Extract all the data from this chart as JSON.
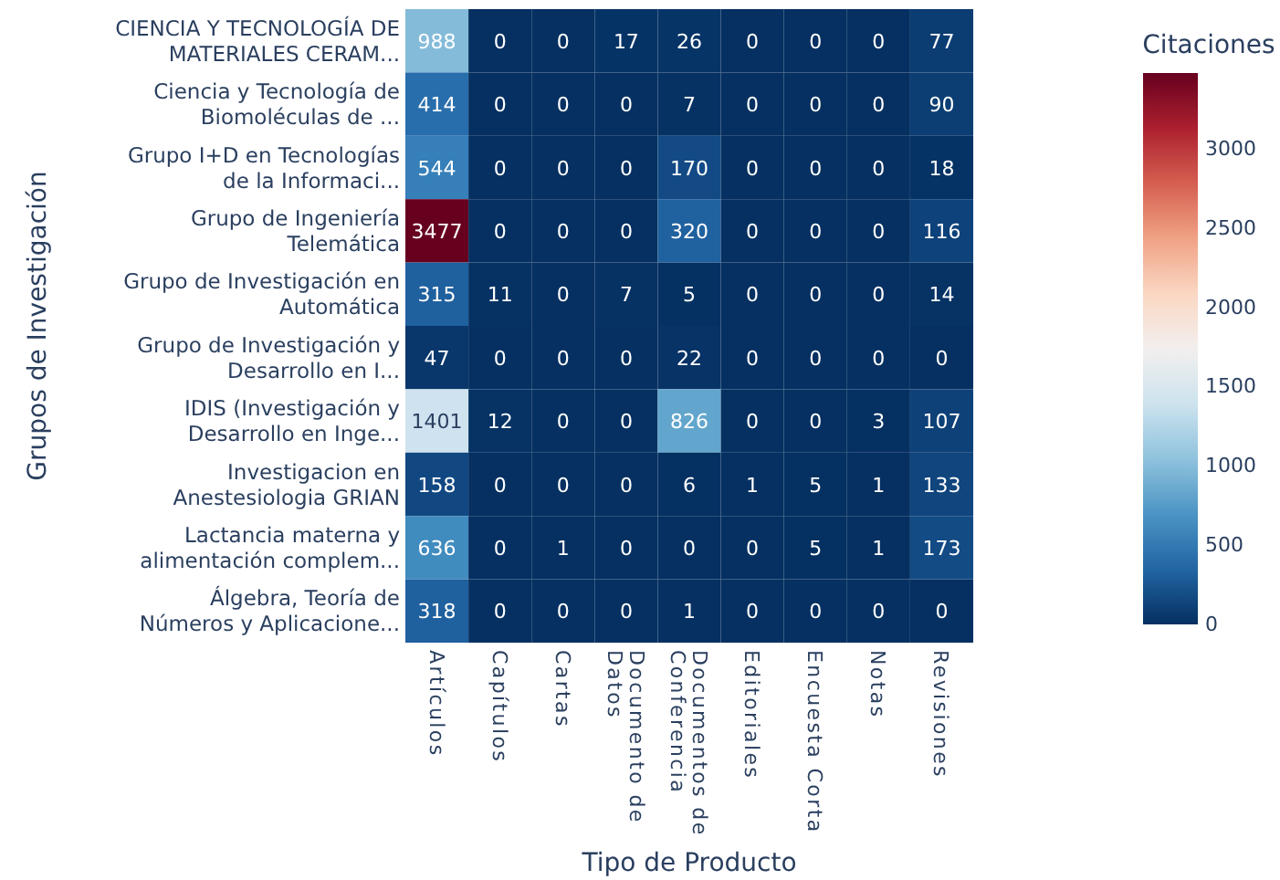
{
  "chart_data": {
    "type": "heatmap",
    "xlabel": "Tipo de Producto",
    "ylabel": "Grupos de Investigación",
    "clabel": "Citaciones",
    "categories": [
      "Artículos",
      "Capítulos",
      "Cartas",
      "Documento de\nDatos",
      "Documentos de\nConferencia",
      "Editoriales",
      "Encuesta Corta",
      "Notas",
      "Revisiones"
    ],
    "y_categories": [
      "CIENCIA Y TECNOLOGÍA DE\nMATERIALES CERAM...",
      "Ciencia y Tecnología de\nBiomoléculas de ...",
      "Grupo I+D en Tecnologías\nde la Informaci...",
      "Grupo de Ingeniería\nTelemática",
      "Grupo de Investigación en\nAutomática",
      "Grupo de Investigación y\nDesarrollo en I...",
      "IDIS (Investigación y\nDesarrollo en Inge...",
      "Investigacion en\nAnestesiologia GRIAN",
      "Lactancia materna y\nalimentación complem...",
      "Álgebra, Teoría de\nNúmeros y Aplicacione..."
    ],
    "cells": [
      [
        988,
        0,
        0,
        17,
        26,
        0,
        0,
        0,
        77
      ],
      [
        414,
        0,
        0,
        0,
        7,
        0,
        0,
        0,
        90
      ],
      [
        544,
        0,
        0,
        0,
        170,
        0,
        0,
        0,
        18
      ],
      [
        3477,
        0,
        0,
        0,
        320,
        0,
        0,
        0,
        116
      ],
      [
        315,
        11,
        0,
        7,
        5,
        0,
        0,
        0,
        14
      ],
      [
        47,
        0,
        0,
        0,
        22,
        0,
        0,
        0,
        0
      ],
      [
        1401,
        12,
        0,
        0,
        826,
        0,
        0,
        3,
        107
      ],
      [
        158,
        0,
        0,
        0,
        6,
        1,
        5,
        1,
        133
      ],
      [
        636,
        0,
        1,
        0,
        0,
        0,
        5,
        1,
        173
      ],
      [
        318,
        0,
        0,
        0,
        1,
        0,
        0,
        0,
        0
      ]
    ],
    "data_labels": true,
    "clim": [
      0,
      3477
    ],
    "cticks": [
      0,
      500,
      1000,
      1500,
      2000,
      2500,
      3000
    ]
  }
}
